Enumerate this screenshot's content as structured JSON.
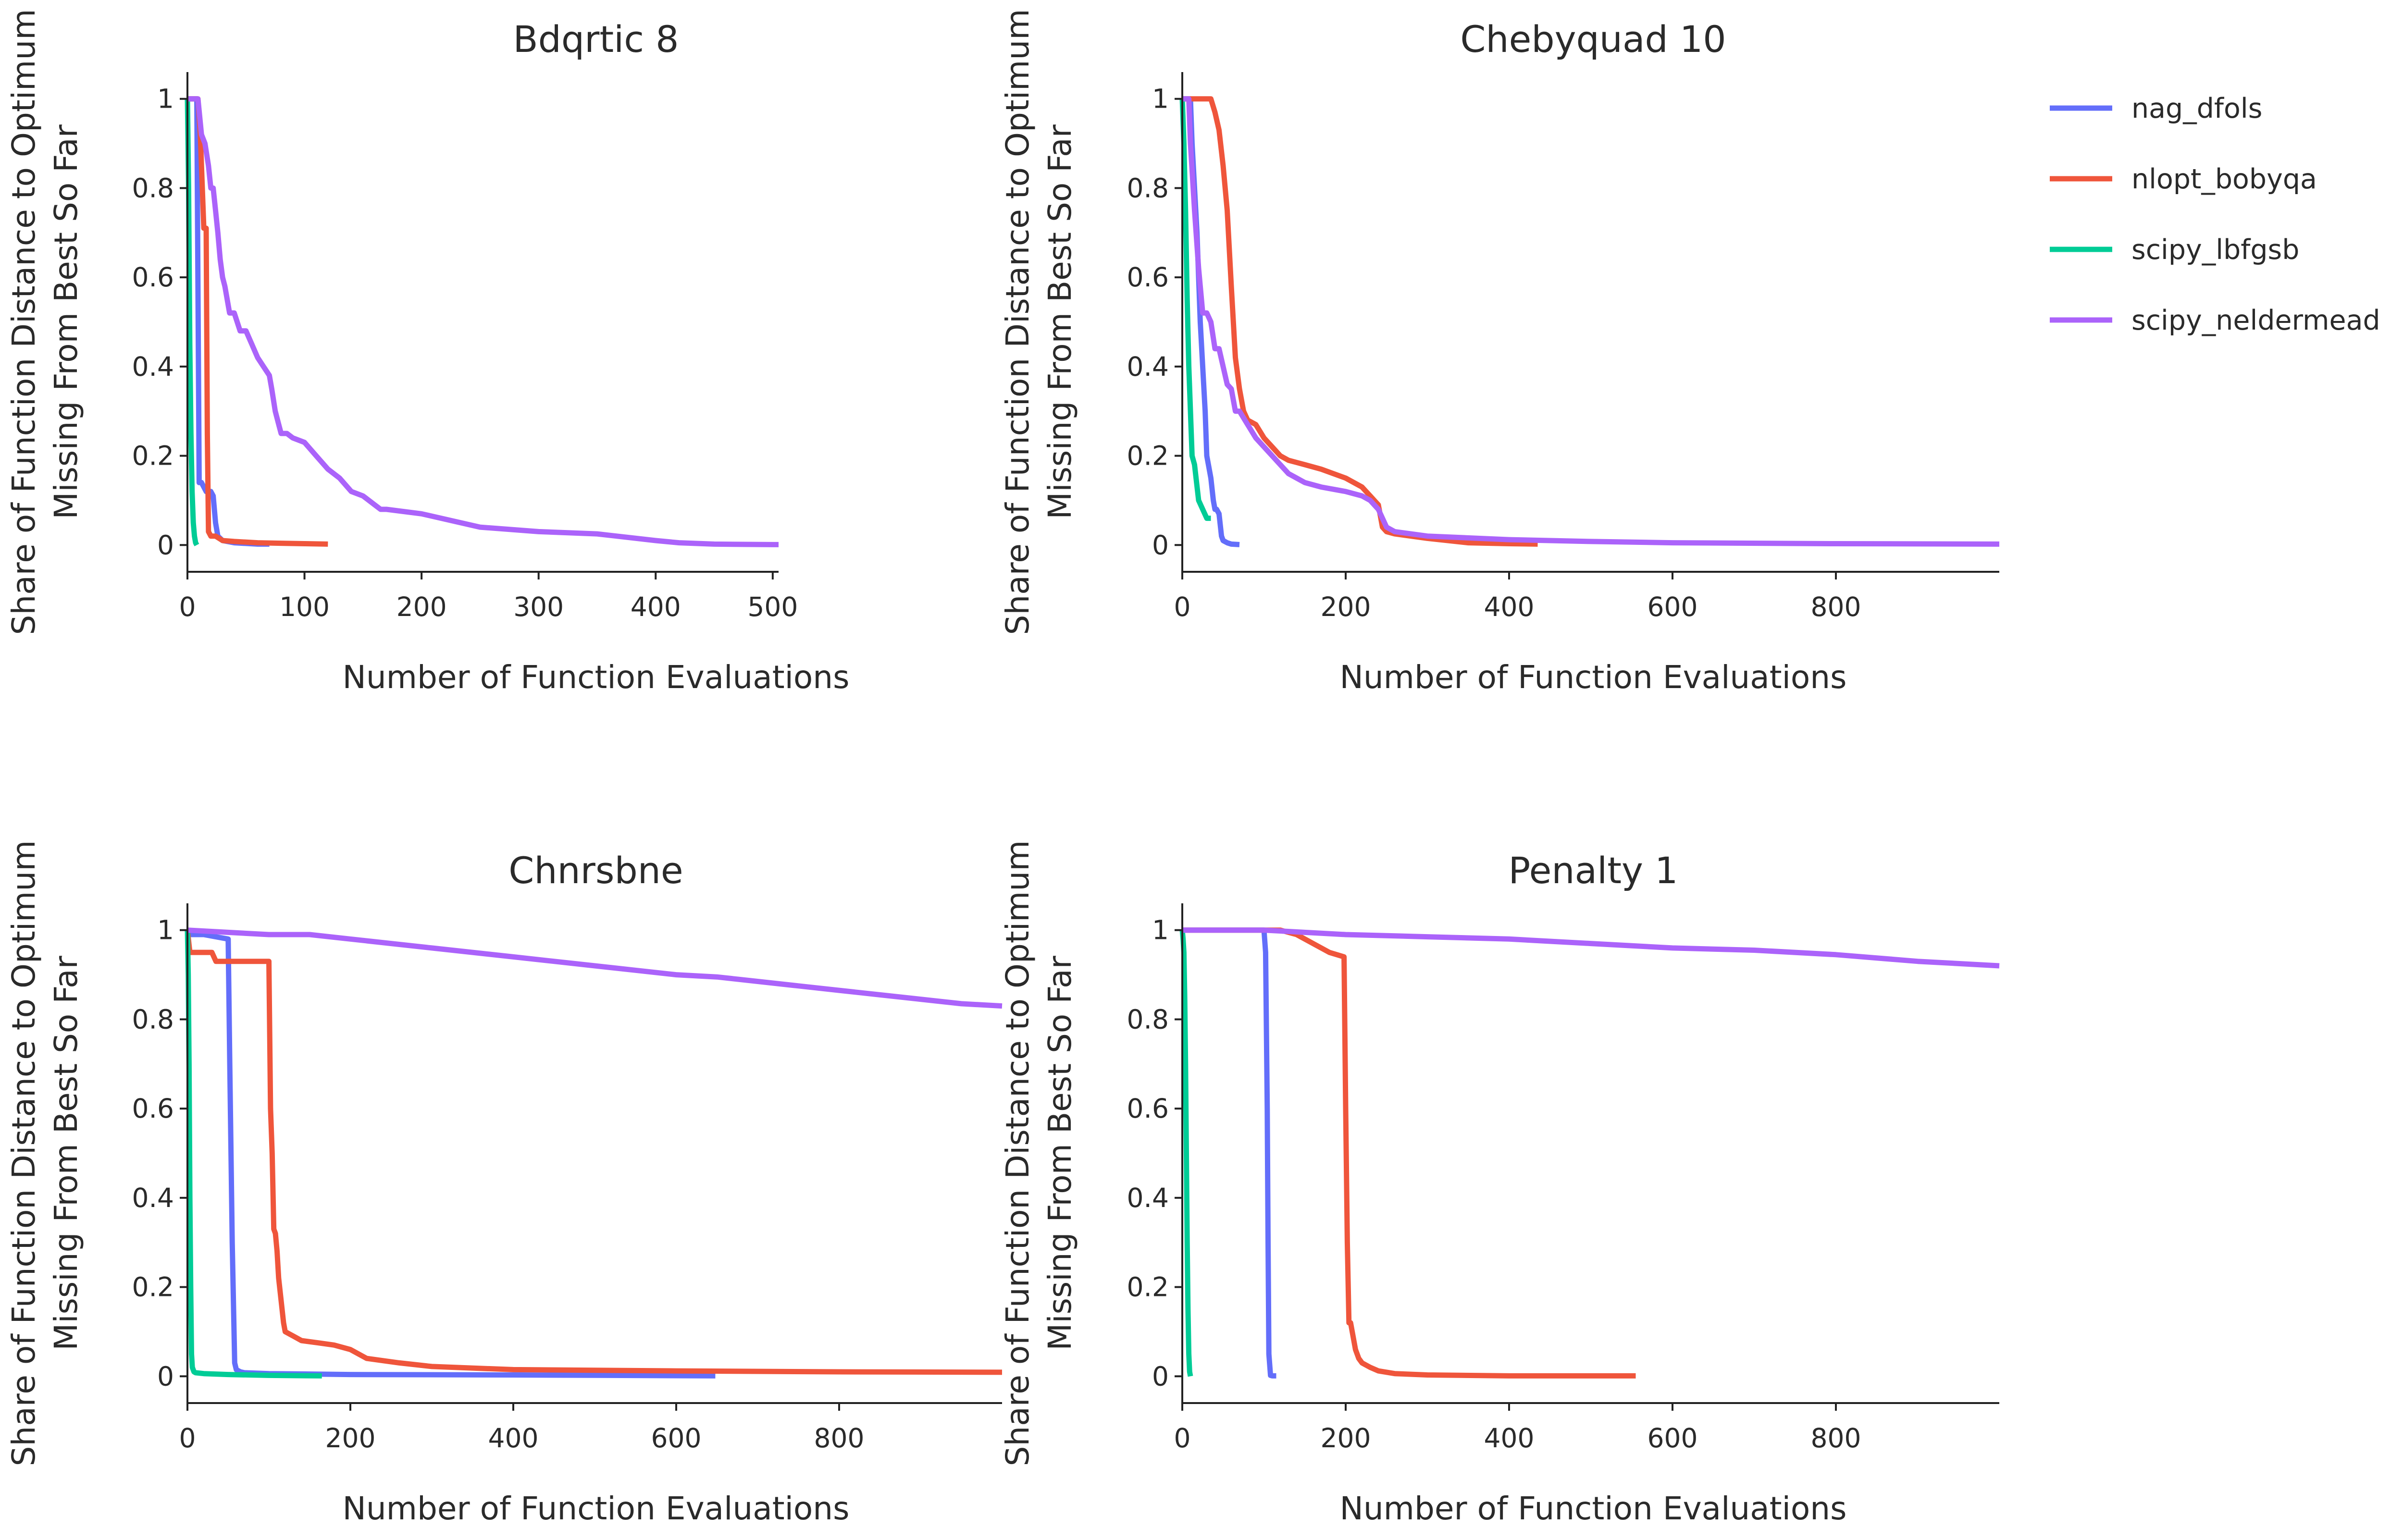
{
  "colors": {
    "nag_dfols": "#636efa",
    "nlopt_bobyqa": "#ef553b",
    "scipy_lbfgsb": "#00cc96",
    "scipy_neldermead": "#ab63fa"
  },
  "legend": {
    "items": [
      {
        "name": "nag_dfols",
        "color": "#636efa"
      },
      {
        "name": "nlopt_bobyqa",
        "color": "#ef553b"
      },
      {
        "name": "scipy_lbfgsb",
        "color": "#00cc96"
      },
      {
        "name": "scipy_neldermead",
        "color": "#ab63fa"
      }
    ]
  },
  "chart_data": [
    {
      "type": "line",
      "title": "Bdqrtic 8",
      "xlabel": "Number of Function Evaluations",
      "ylabel_line1": "Share of Function Distance to Optimum",
      "ylabel_line2": "Missing From Best So Far",
      "xlim": [
        0,
        505
      ],
      "ylim": [
        -0.06,
        1.06
      ],
      "xticks": [
        0,
        100,
        200,
        300,
        400,
        500
      ],
      "xtick_labels": [
        "0",
        "100",
        "200",
        "300",
        "400",
        "500"
      ],
      "yticks": [
        0,
        0.2,
        0.4,
        0.6,
        0.8,
        1
      ],
      "ytick_labels": [
        "0",
        "0.2",
        "0.4",
        "0.6",
        "0.8",
        "1"
      ],
      "series": [
        {
          "name": "nag_dfols",
          "x": [
            0,
            8,
            10,
            12,
            14,
            16,
            18,
            20,
            22,
            24,
            26,
            30,
            40,
            60,
            70
          ],
          "y": [
            1,
            1,
            0.14,
            0.14,
            0.13,
            0.12,
            0.12,
            0.12,
            0.11,
            0.05,
            0.02,
            0.01,
            0.005,
            0.002,
            0.002
          ]
        },
        {
          "name": "nlopt_bobyqa",
          "x": [
            0,
            9,
            11,
            14,
            16,
            17,
            18,
            20,
            24,
            30,
            40,
            60,
            80,
            100,
            120
          ],
          "y": [
            1,
            1,
            0.92,
            0.71,
            0.71,
            0.25,
            0.03,
            0.02,
            0.02,
            0.01,
            0.008,
            0.005,
            0.004,
            0.003,
            0.002
          ]
        },
        {
          "name": "scipy_lbfgsb",
          "x": [
            0,
            1,
            2,
            3,
            4,
            5,
            6,
            7,
            8
          ],
          "y": [
            1,
            0.8,
            0.45,
            0.25,
            0.12,
            0.05,
            0.02,
            0.005,
            0
          ]
        },
        {
          "name": "scipy_neldermead",
          "x": [
            0,
            9,
            12,
            15,
            18,
            20,
            22,
            24,
            26,
            28,
            30,
            32,
            34,
            36,
            38,
            40,
            45,
            50,
            55,
            60,
            65,
            70,
            72,
            75,
            78,
            80,
            82,
            85,
            90,
            100,
            110,
            120,
            130,
            140,
            150,
            160,
            165,
            170,
            200,
            250,
            300,
            350,
            400,
            420,
            450,
            500,
            505
          ],
          "y": [
            1,
            1,
            0.92,
            0.9,
            0.85,
            0.8,
            0.8,
            0.75,
            0.7,
            0.64,
            0.6,
            0.58,
            0.55,
            0.52,
            0.52,
            0.52,
            0.48,
            0.48,
            0.45,
            0.42,
            0.4,
            0.38,
            0.35,
            0.3,
            0.27,
            0.25,
            0.25,
            0.25,
            0.24,
            0.23,
            0.2,
            0.17,
            0.15,
            0.12,
            0.11,
            0.09,
            0.08,
            0.08,
            0.07,
            0.04,
            0.03,
            0.025,
            0.01,
            0.005,
            0.002,
            0.001,
            0.001
          ]
        }
      ]
    },
    {
      "type": "line",
      "title": "Chebyquad 10",
      "xlabel": "Number of Function Evaluations",
      "ylabel_line1": "Share of Function Distance to Optimum",
      "ylabel_line2": "Missing From Best So Far",
      "xlim": [
        0,
        1000
      ],
      "ylim": [
        -0.06,
        1.06
      ],
      "xticks": [
        0,
        200,
        400,
        600,
        800
      ],
      "xtick_labels": [
        "0",
        "200",
        "400",
        "600",
        "800"
      ],
      "yticks": [
        0,
        0.2,
        0.4,
        0.6,
        0.8,
        1
      ],
      "ytick_labels": [
        "0",
        "0.2",
        "0.4",
        "0.6",
        "0.8",
        "1"
      ],
      "series": [
        {
          "name": "nag_dfols",
          "x": [
            0,
            10,
            12,
            15,
            18,
            20,
            22,
            25,
            28,
            30,
            32,
            35,
            38,
            40,
            42,
            45,
            48,
            50,
            55,
            60,
            70
          ],
          "y": [
            1,
            1,
            0.9,
            0.8,
            0.7,
            0.6,
            0.5,
            0.4,
            0.3,
            0.2,
            0.18,
            0.15,
            0.1,
            0.08,
            0.08,
            0.07,
            0.02,
            0.01,
            0.005,
            0.002,
            0.001
          ]
        },
        {
          "name": "nlopt_bobyqa",
          "x": [
            0,
            10,
            35,
            40,
            45,
            50,
            55,
            60,
            65,
            70,
            75,
            80,
            90,
            100,
            110,
            120,
            130,
            140,
            150,
            170,
            200,
            220,
            230,
            235,
            240,
            245,
            250,
            260,
            300,
            350,
            400,
            435
          ],
          "y": [
            1,
            1,
            1,
            0.97,
            0.93,
            0.85,
            0.75,
            0.58,
            0.42,
            0.35,
            0.3,
            0.28,
            0.27,
            0.24,
            0.22,
            0.2,
            0.19,
            0.185,
            0.18,
            0.17,
            0.15,
            0.13,
            0.11,
            0.1,
            0.09,
            0.04,
            0.03,
            0.025,
            0.015,
            0.005,
            0.003,
            0.002
          ]
        },
        {
          "name": "scipy_lbfgsb",
          "x": [
            0,
            2,
            4,
            6,
            8,
            10,
            12,
            15,
            20,
            25,
            30,
            35
          ],
          "y": [
            1,
            0.9,
            0.75,
            0.55,
            0.4,
            0.3,
            0.2,
            0.18,
            0.1,
            0.08,
            0.06,
            0.06
          ]
        },
        {
          "name": "scipy_neldermead",
          "x": [
            0,
            8,
            10,
            15,
            20,
            25,
            30,
            35,
            40,
            45,
            50,
            55,
            60,
            65,
            70,
            80,
            90,
            100,
            110,
            120,
            130,
            140,
            150,
            170,
            200,
            220,
            230,
            240,
            250,
            260,
            300,
            400,
            500,
            600,
            800,
            1000
          ],
          "y": [
            1,
            1,
            0.9,
            0.75,
            0.62,
            0.52,
            0.52,
            0.5,
            0.44,
            0.44,
            0.4,
            0.36,
            0.35,
            0.3,
            0.3,
            0.27,
            0.24,
            0.22,
            0.2,
            0.18,
            0.16,
            0.15,
            0.14,
            0.13,
            0.12,
            0.11,
            0.1,
            0.08,
            0.04,
            0.03,
            0.02,
            0.012,
            0.008,
            0.005,
            0.003,
            0.002
          ]
        }
      ]
    },
    {
      "type": "line",
      "title": "Chnrsbne",
      "xlabel": "Number of Function Evaluations",
      "ylabel_line1": "Share of Function Distance to Optimum",
      "ylabel_line2": "Missing From Best So Far",
      "xlim": [
        0,
        1000
      ],
      "ylim": [
        -0.06,
        1.06
      ],
      "xticks": [
        0,
        200,
        400,
        600,
        800
      ],
      "xtick_labels": [
        "0",
        "200",
        "400",
        "600",
        "800"
      ],
      "yticks": [
        0,
        0.2,
        0.4,
        0.6,
        0.8,
        1
      ],
      "ytick_labels": [
        "0",
        "0.2",
        "0.4",
        "0.6",
        "0.8",
        "1"
      ],
      "series": [
        {
          "name": "nag_dfols",
          "x": [
            0,
            5,
            20,
            50,
            52,
            55,
            58,
            60,
            65,
            70,
            100,
            200,
            400,
            648
          ],
          "y": [
            1,
            0.99,
            0.99,
            0.98,
            0.7,
            0.3,
            0.03,
            0.015,
            0.01,
            0.008,
            0.006,
            0.004,
            0.003,
            0.001
          ]
        },
        {
          "name": "nlopt_bobyqa",
          "x": [
            0,
            3,
            30,
            35,
            50,
            60,
            100,
            102,
            104,
            106,
            108,
            110,
            112,
            115,
            118,
            120,
            130,
            140,
            160,
            180,
            200,
            220,
            260,
            300,
            400,
            600,
            800,
            1000
          ],
          "y": [
            1,
            0.95,
            0.95,
            0.93,
            0.93,
            0.93,
            0.93,
            0.6,
            0.5,
            0.33,
            0.32,
            0.28,
            0.22,
            0.17,
            0.12,
            0.1,
            0.09,
            0.08,
            0.075,
            0.07,
            0.06,
            0.04,
            0.03,
            0.022,
            0.015,
            0.012,
            0.01,
            0.009
          ]
        },
        {
          "name": "scipy_lbfgsb",
          "x": [
            0,
            1,
            2,
            3,
            4,
            5,
            6,
            8,
            10,
            20,
            50,
            100,
            165
          ],
          "y": [
            1,
            0.9,
            0.7,
            0.4,
            0.2,
            0.05,
            0.02,
            0.01,
            0.008,
            0.006,
            0.004,
            0.002,
            0.001
          ]
        },
        {
          "name": "scipy_neldermead",
          "x": [
            0,
            50,
            100,
            150,
            200,
            250,
            300,
            350,
            400,
            450,
            500,
            550,
            600,
            650,
            700,
            750,
            800,
            850,
            900,
            950,
            1000
          ],
          "y": [
            1,
            0.995,
            0.99,
            0.99,
            0.98,
            0.97,
            0.96,
            0.95,
            0.94,
            0.93,
            0.92,
            0.91,
            0.9,
            0.895,
            0.885,
            0.875,
            0.865,
            0.855,
            0.845,
            0.835,
            0.83
          ]
        }
      ]
    },
    {
      "type": "line",
      "title": "Penalty 1",
      "xlabel": "Number of Function Evaluations",
      "ylabel_line1": "Share of Function Distance to Optimum",
      "ylabel_line2": "Missing From Best So Far",
      "xlim": [
        0,
        1000
      ],
      "ylim": [
        -0.06,
        1.06
      ],
      "xticks": [
        0,
        200,
        400,
        600,
        800
      ],
      "xtick_labels": [
        "0",
        "200",
        "400",
        "600",
        "800"
      ],
      "yticks": [
        0,
        0.2,
        0.4,
        0.6,
        0.8,
        1
      ],
      "ytick_labels": [
        "0",
        "0.2",
        "0.4",
        "0.6",
        "0.8",
        "1"
      ],
      "series": [
        {
          "name": "nag_dfols",
          "x": [
            0,
            50,
            100,
            102,
            104,
            105,
            106,
            108,
            110,
            115
          ],
          "y": [
            1,
            1,
            1,
            0.95,
            0.6,
            0.3,
            0.05,
            0.002,
            0.001,
            0.001
          ]
        },
        {
          "name": "nlopt_bobyqa",
          "x": [
            0,
            120,
            140,
            160,
            180,
            198,
            200,
            202,
            204,
            206,
            208,
            212,
            216,
            220,
            230,
            240,
            260,
            300,
            400,
            555
          ],
          "y": [
            1,
            1,
            0.99,
            0.97,
            0.95,
            0.94,
            0.6,
            0.3,
            0.12,
            0.12,
            0.1,
            0.06,
            0.04,
            0.03,
            0.02,
            0.012,
            0.006,
            0.003,
            0.001,
            0.001
          ]
        },
        {
          "name": "scipy_lbfgsb",
          "x": [
            0,
            1,
            2,
            3,
            4,
            5,
            6,
            7,
            8,
            9,
            10
          ],
          "y": [
            1,
            0.98,
            0.95,
            0.85,
            0.7,
            0.5,
            0.3,
            0.15,
            0.05,
            0.01,
            0
          ]
        },
        {
          "name": "scipy_neldermead",
          "x": [
            0,
            100,
            200,
            300,
            400,
            500,
            600,
            700,
            800,
            900,
            1000
          ],
          "y": [
            1,
            1,
            0.99,
            0.985,
            0.98,
            0.97,
            0.96,
            0.955,
            0.945,
            0.93,
            0.92
          ]
        }
      ]
    }
  ]
}
